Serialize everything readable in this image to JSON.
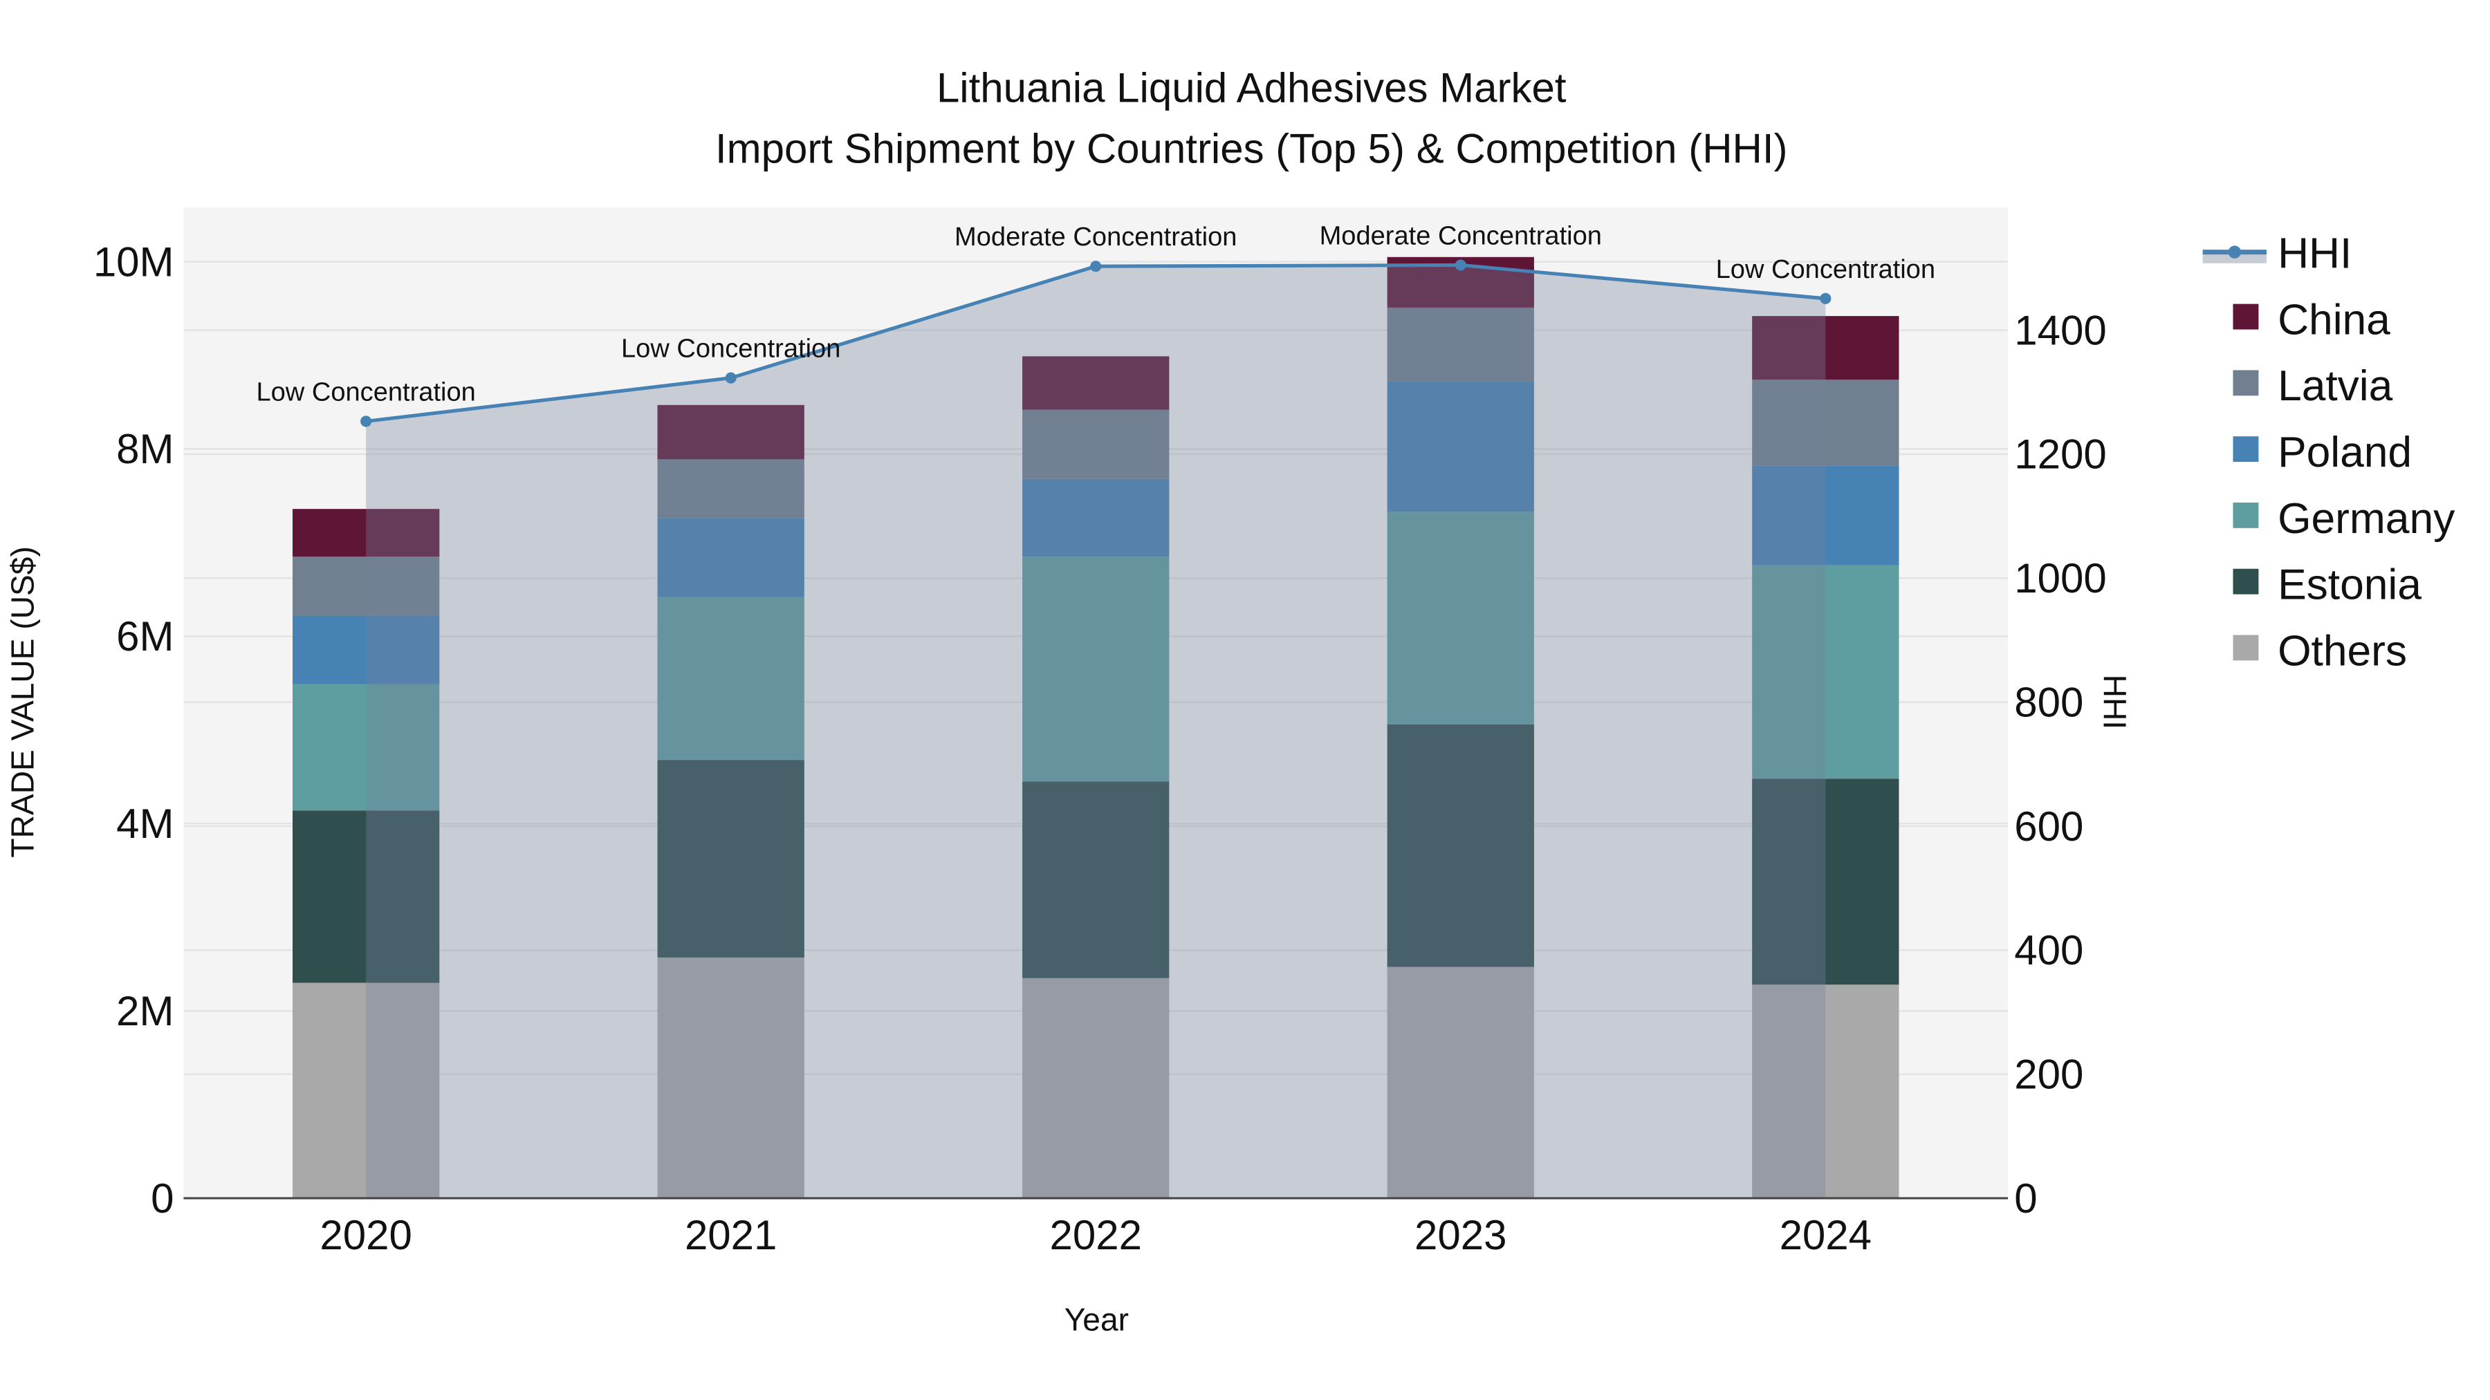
{
  "chart_data": {
    "type": "bar",
    "stacked": true,
    "title": "Lithuania Liquid Adhesives Market",
    "subtitle": "Import Shipment by Countries (Top 5) & Competition (HHI)",
    "xlabel": "Year",
    "ylabel": "TRADE VALUE (US$)",
    "y2label": "HHI",
    "categories": [
      "2020",
      "2021",
      "2022",
      "2023",
      "2024"
    ],
    "ylim": [
      0,
      10580000
    ],
    "y2lim": [
      0,
      1598
    ],
    "yticks": [
      0,
      2000000,
      4000000,
      6000000,
      8000000,
      10000000
    ],
    "ytick_labels": [
      "0",
      "2M",
      "4M",
      "6M",
      "8M",
      "10M"
    ],
    "y2ticks": [
      0,
      200,
      400,
      600,
      800,
      1000,
      1200,
      1400
    ],
    "y2tick_labels": [
      "0",
      "200",
      "400",
      "600",
      "800",
      "1000",
      "1200",
      "1400"
    ],
    "grid": true,
    "legend_placement": "right",
    "series": [
      {
        "name": "Others",
        "color": "#a9a9a9",
        "values": [
          2300000,
          2570000,
          2350000,
          2470000,
          2280000
        ]
      },
      {
        "name": "Estonia",
        "color": "#2f4f4f",
        "values": [
          1840000,
          2110000,
          2100000,
          2590000,
          2200000
        ]
      },
      {
        "name": "Germany",
        "color": "#5f9ea0",
        "values": [
          1350000,
          1740000,
          2400000,
          2270000,
          2280000
        ]
      },
      {
        "name": "Poland",
        "color": "#4682b4",
        "values": [
          730000,
          840000,
          830000,
          1390000,
          1060000
        ]
      },
      {
        "name": "Latvia",
        "color": "#708090",
        "values": [
          630000,
          630000,
          740000,
          790000,
          920000
        ]
      },
      {
        "name": "China",
        "color": "#5f1536",
        "values": [
          510000,
          580000,
          570000,
          540000,
          680000
        ]
      }
    ],
    "hhi": {
      "name": "HHI",
      "color": "#4682b4",
      "values": [
        1253,
        1323,
        1503,
        1505,
        1451
      ],
      "annotations": [
        "Low Concentration",
        "Low Concentration",
        "Moderate Concentration",
        "Moderate Concentration",
        "Low Concentration"
      ]
    },
    "legend": [
      "HHI",
      "China",
      "Latvia",
      "Poland",
      "Germany",
      "Estonia",
      "Others"
    ]
  }
}
